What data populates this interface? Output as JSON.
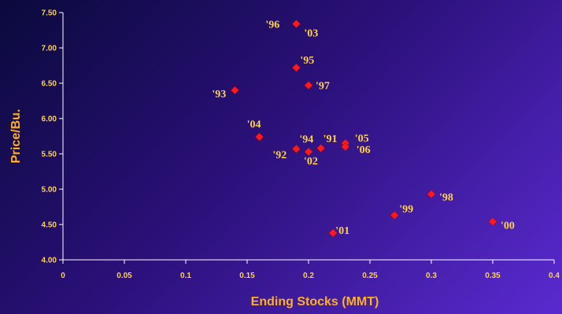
{
  "chart_data": {
    "type": "scatter",
    "title": "",
    "xlabel": "Ending Stocks (MMT)",
    "ylabel": "Price/Bu.",
    "xlim": [
      0,
      0.4
    ],
    "ylim": [
      4.0,
      7.5
    ],
    "x_ticks": [
      "0",
      "0.05",
      "0.1",
      "0.15",
      "0.2",
      "0.25",
      "0.3",
      "0.35",
      "0.4"
    ],
    "y_ticks": [
      "4.00",
      "4.50",
      "5.00",
      "5.50",
      "6.00",
      "6.50",
      "7.00",
      "7.50"
    ],
    "grid": false,
    "colors": {
      "marker": "#ff1a1a",
      "label": "#ffd24a",
      "axis_title": "#ffb020",
      "axis": "#ffffff"
    },
    "points": [
      {
        "label": "'96",
        "x": 0.19,
        "y": 7.34
      },
      {
        "label": "'03",
        "x": 0.19,
        "y": 7.34
      },
      {
        "label": "'95",
        "x": 0.19,
        "y": 6.72
      },
      {
        "label": "'97",
        "x": 0.2,
        "y": 6.47
      },
      {
        "label": "'93",
        "x": 0.14,
        "y": 6.4
      },
      {
        "label": "'04",
        "x": 0.16,
        "y": 5.74
      },
      {
        "label": "'94",
        "x": 0.19,
        "y": 5.57
      },
      {
        "label": "'91",
        "x": 0.21,
        "y": 5.58
      },
      {
        "label": "'05",
        "x": 0.23,
        "y": 5.65
      },
      {
        "label": "'06",
        "x": 0.23,
        "y": 5.6
      },
      {
        "label": "'92",
        "x": 0.19,
        "y": 5.57
      },
      {
        "label": "'02",
        "x": 0.2,
        "y": 5.53
      },
      {
        "label": "'98",
        "x": 0.3,
        "y": 4.93
      },
      {
        "label": "'99",
        "x": 0.27,
        "y": 4.63
      },
      {
        "label": "'00",
        "x": 0.35,
        "y": 4.54
      },
      {
        "label": "'01",
        "x": 0.22,
        "y": 4.38
      }
    ]
  }
}
